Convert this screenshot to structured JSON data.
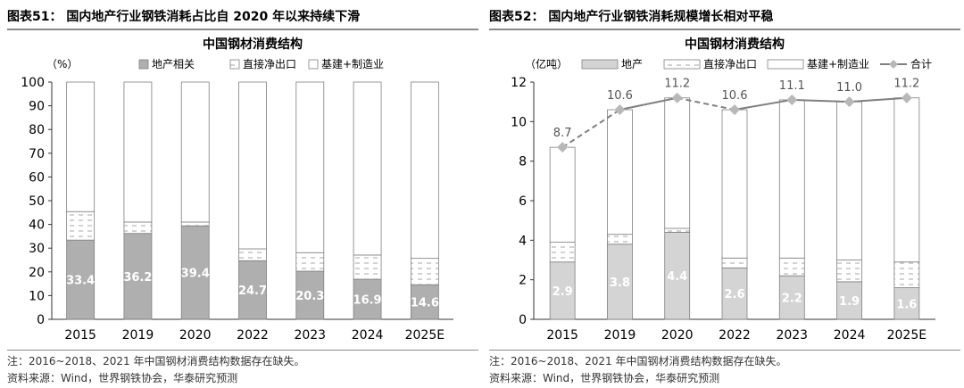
{
  "panels": [
    {
      "figure_label": "图表51：",
      "figure_title": "国内地产行业钢铁消耗占比自 2020 年以来持续下滑",
      "note": "注：2016~2018、2021 年中国钢材消费结构数据存在缺失。",
      "source": "资料来源：Wind，世界钢铁协会，华泰研究预测"
    },
    {
      "figure_label": "图表52：",
      "figure_title": "国内地产行业钢铁消耗规模增长相对平稳",
      "note": "注：2016~2018、2021 年中国钢材消费结构数据存在缺失。",
      "source": "资料来源：Wind，世界钢铁协会，华泰研究预测"
    }
  ],
  "colors": {
    "gray_dark": "#afafaf",
    "gray_light": "#d4d4d4",
    "line": "#7f7f7f",
    "marker": "#b8b8b8"
  },
  "chart_data": [
    {
      "type": "bar",
      "stacked": true,
      "title": "中国钢材消费结构",
      "unit_label": "（%）",
      "categories": [
        "2015",
        "2019",
        "2020",
        "2022",
        "2023",
        "2024",
        "2025E"
      ],
      "series": [
        {
          "name": "地产相关",
          "values": [
            33.4,
            36.2,
            39.4,
            24.7,
            20.3,
            16.9,
            14.6
          ],
          "show_labels": true
        },
        {
          "name": "直接净出口",
          "values": [
            12.0,
            4.8,
            1.6,
            5.0,
            7.8,
            10.2,
            11.1
          ]
        },
        {
          "name": "基建+制造业",
          "values": [
            54.6,
            59.0,
            59.0,
            70.3,
            71.9,
            72.9,
            74.3
          ]
        }
      ],
      "ylim": [
        0,
        100
      ],
      "yticks": [
        0,
        10,
        20,
        30,
        40,
        50,
        60,
        70,
        80,
        90,
        100
      ],
      "legend_position": "top"
    },
    {
      "type": "bar",
      "stacked": true,
      "title": "中国钢材消费结构",
      "unit_label": "（亿吨）",
      "categories": [
        "2015",
        "2019",
        "2020",
        "2022",
        "2023",
        "2024",
        "2025E"
      ],
      "series": [
        {
          "name": "地产",
          "values": [
            2.9,
            3.8,
            4.4,
            2.6,
            2.2,
            1.9,
            1.6
          ],
          "show_labels": true
        },
        {
          "name": "直接净出口",
          "values": [
            1.0,
            0.5,
            0.2,
            0.5,
            0.9,
            1.1,
            1.3
          ]
        },
        {
          "name": "基建+制造业",
          "values": [
            4.8,
            6.3,
            6.6,
            7.5,
            8.0,
            8.0,
            8.3
          ]
        }
      ],
      "line": {
        "name": "合计",
        "values": [
          8.7,
          10.6,
          11.2,
          10.6,
          11.1,
          11.0,
          11.2
        ],
        "dashed_segments": [
          0,
          2
        ]
      },
      "ylim": [
        0,
        12
      ],
      "yticks": [
        0,
        2,
        4,
        6,
        8,
        10,
        12
      ],
      "legend_position": "top"
    }
  ]
}
